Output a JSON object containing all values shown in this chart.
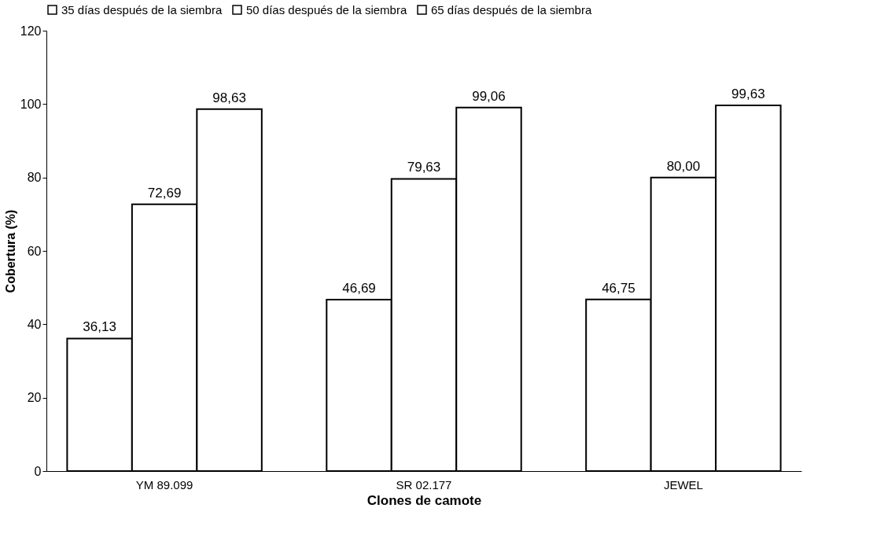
{
  "chart_data": {
    "type": "bar",
    "xlabel": "Clones de camote",
    "ylabel": "Cobertura (%)",
    "categories": [
      "YM 89.099",
      "SR 02.177",
      "JEWEL"
    ],
    "series": [
      {
        "name": "35 días después de la siembra",
        "color": "#ffffff",
        "values": [
          36.13,
          46.69,
          46.75
        ],
        "value_labels": [
          "36,13",
          "46,69",
          "46,75"
        ]
      },
      {
        "name": "50 días después de la siembra",
        "color": "#ffffff",
        "values": [
          72.69,
          79.63,
          80.0
        ],
        "value_labels": [
          "72,69",
          "79,63",
          "80,00"
        ]
      },
      {
        "name": "65 días después de la siembra",
        "color": "#ffffff",
        "values": [
          98.63,
          99.06,
          99.63
        ],
        "value_labels": [
          "98,63",
          "99,06",
          "99,63"
        ]
      }
    ],
    "ylim": [
      0,
      120
    ],
    "yticks": [
      0,
      20,
      40,
      60,
      80,
      100,
      120
    ],
    "grid": false,
    "legend": "top"
  }
}
